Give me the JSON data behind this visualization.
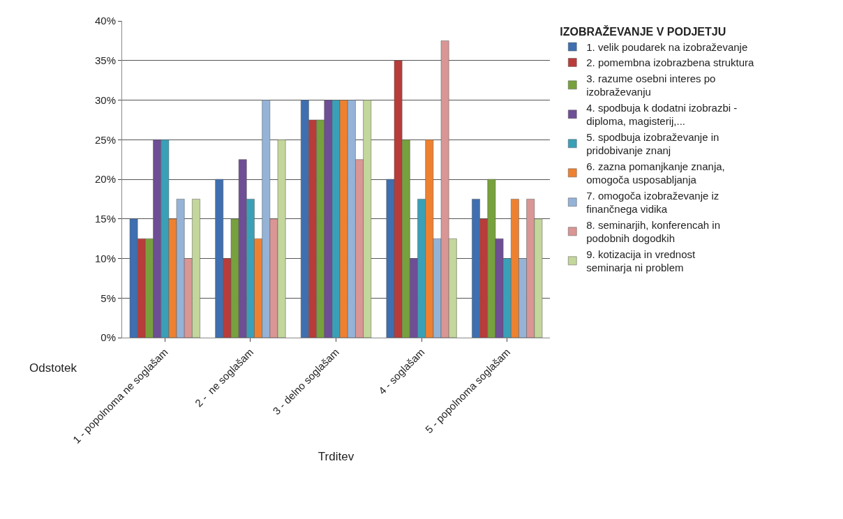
{
  "chart_data": {
    "type": "bar",
    "legend_title": "IZOBRAŽEVANJE V PODJETJU",
    "xlabel": "Trditev",
    "ylabel": "Odstotek",
    "categories": [
      "1 - popolnoma ne soglašam",
      "2 -  ne soglašam",
      "3 - delno soglašam",
      "4 - soglašam",
      "5 - popolnoma soglašam"
    ],
    "series": [
      {
        "name": "1. velik poudarek na izobraževanje",
        "color": "#3f6fb0",
        "values": [
          15,
          20,
          30,
          20,
          17.5
        ]
      },
      {
        "name": "2. pomembna izobrazbena struktura",
        "color": "#b83c3a",
        "values": [
          12.5,
          10,
          27.5,
          35,
          15
        ]
      },
      {
        "name": "3. razume osebni interes po izobraževanju",
        "color": "#77a13d",
        "values": [
          12.5,
          15,
          27.5,
          25,
          20
        ]
      },
      {
        "name": "4. spodbuja k dodatni izobrazbi - diploma, magisterij,...",
        "color": "#6e4e94",
        "values": [
          25,
          22.5,
          30,
          10,
          12.5
        ]
      },
      {
        "name": "5. spodbuja izobraževanje in pridobivanje znanj",
        "color": "#3aa0b8",
        "values": [
          25,
          17.5,
          30,
          17.5,
          10
        ]
      },
      {
        "name": "6. zazna pomanjkanje znanja, omogoča usposabljanja",
        "color": "#ee8130",
        "values": [
          15,
          12.5,
          30,
          25,
          17.5
        ]
      },
      {
        "name": "7. omogoča izobraževanje iz finančnega vidika",
        "color": "#95b3d7",
        "values": [
          17.5,
          30,
          30,
          12.5,
          10
        ]
      },
      {
        "name": "8. seminarjih, konferencah in podobnih dogodkih",
        "color": "#d99694",
        "values": [
          10,
          15,
          22.5,
          37.5,
          17.5
        ]
      },
      {
        "name": "9. kotizacija in vrednost seminarja ni problem",
        "color": "#c3d69b",
        "values": [
          17.5,
          25,
          30,
          12.5,
          15
        ]
      }
    ],
    "ylim": [
      0,
      40
    ],
    "yticks": [
      {
        "value": 0,
        "label": "0%"
      },
      {
        "value": 5,
        "label": "5%"
      },
      {
        "value": 10,
        "label": "10%"
      },
      {
        "value": 15,
        "label": "15%"
      },
      {
        "value": 20,
        "label": "20%"
      },
      {
        "value": 25,
        "label": "25%"
      },
      {
        "value": 30,
        "label": "30%"
      },
      {
        "value": 35,
        "label": "35%"
      },
      {
        "value": 40,
        "label": "40%"
      }
    ],
    "grid": "y",
    "legend": "right"
  }
}
